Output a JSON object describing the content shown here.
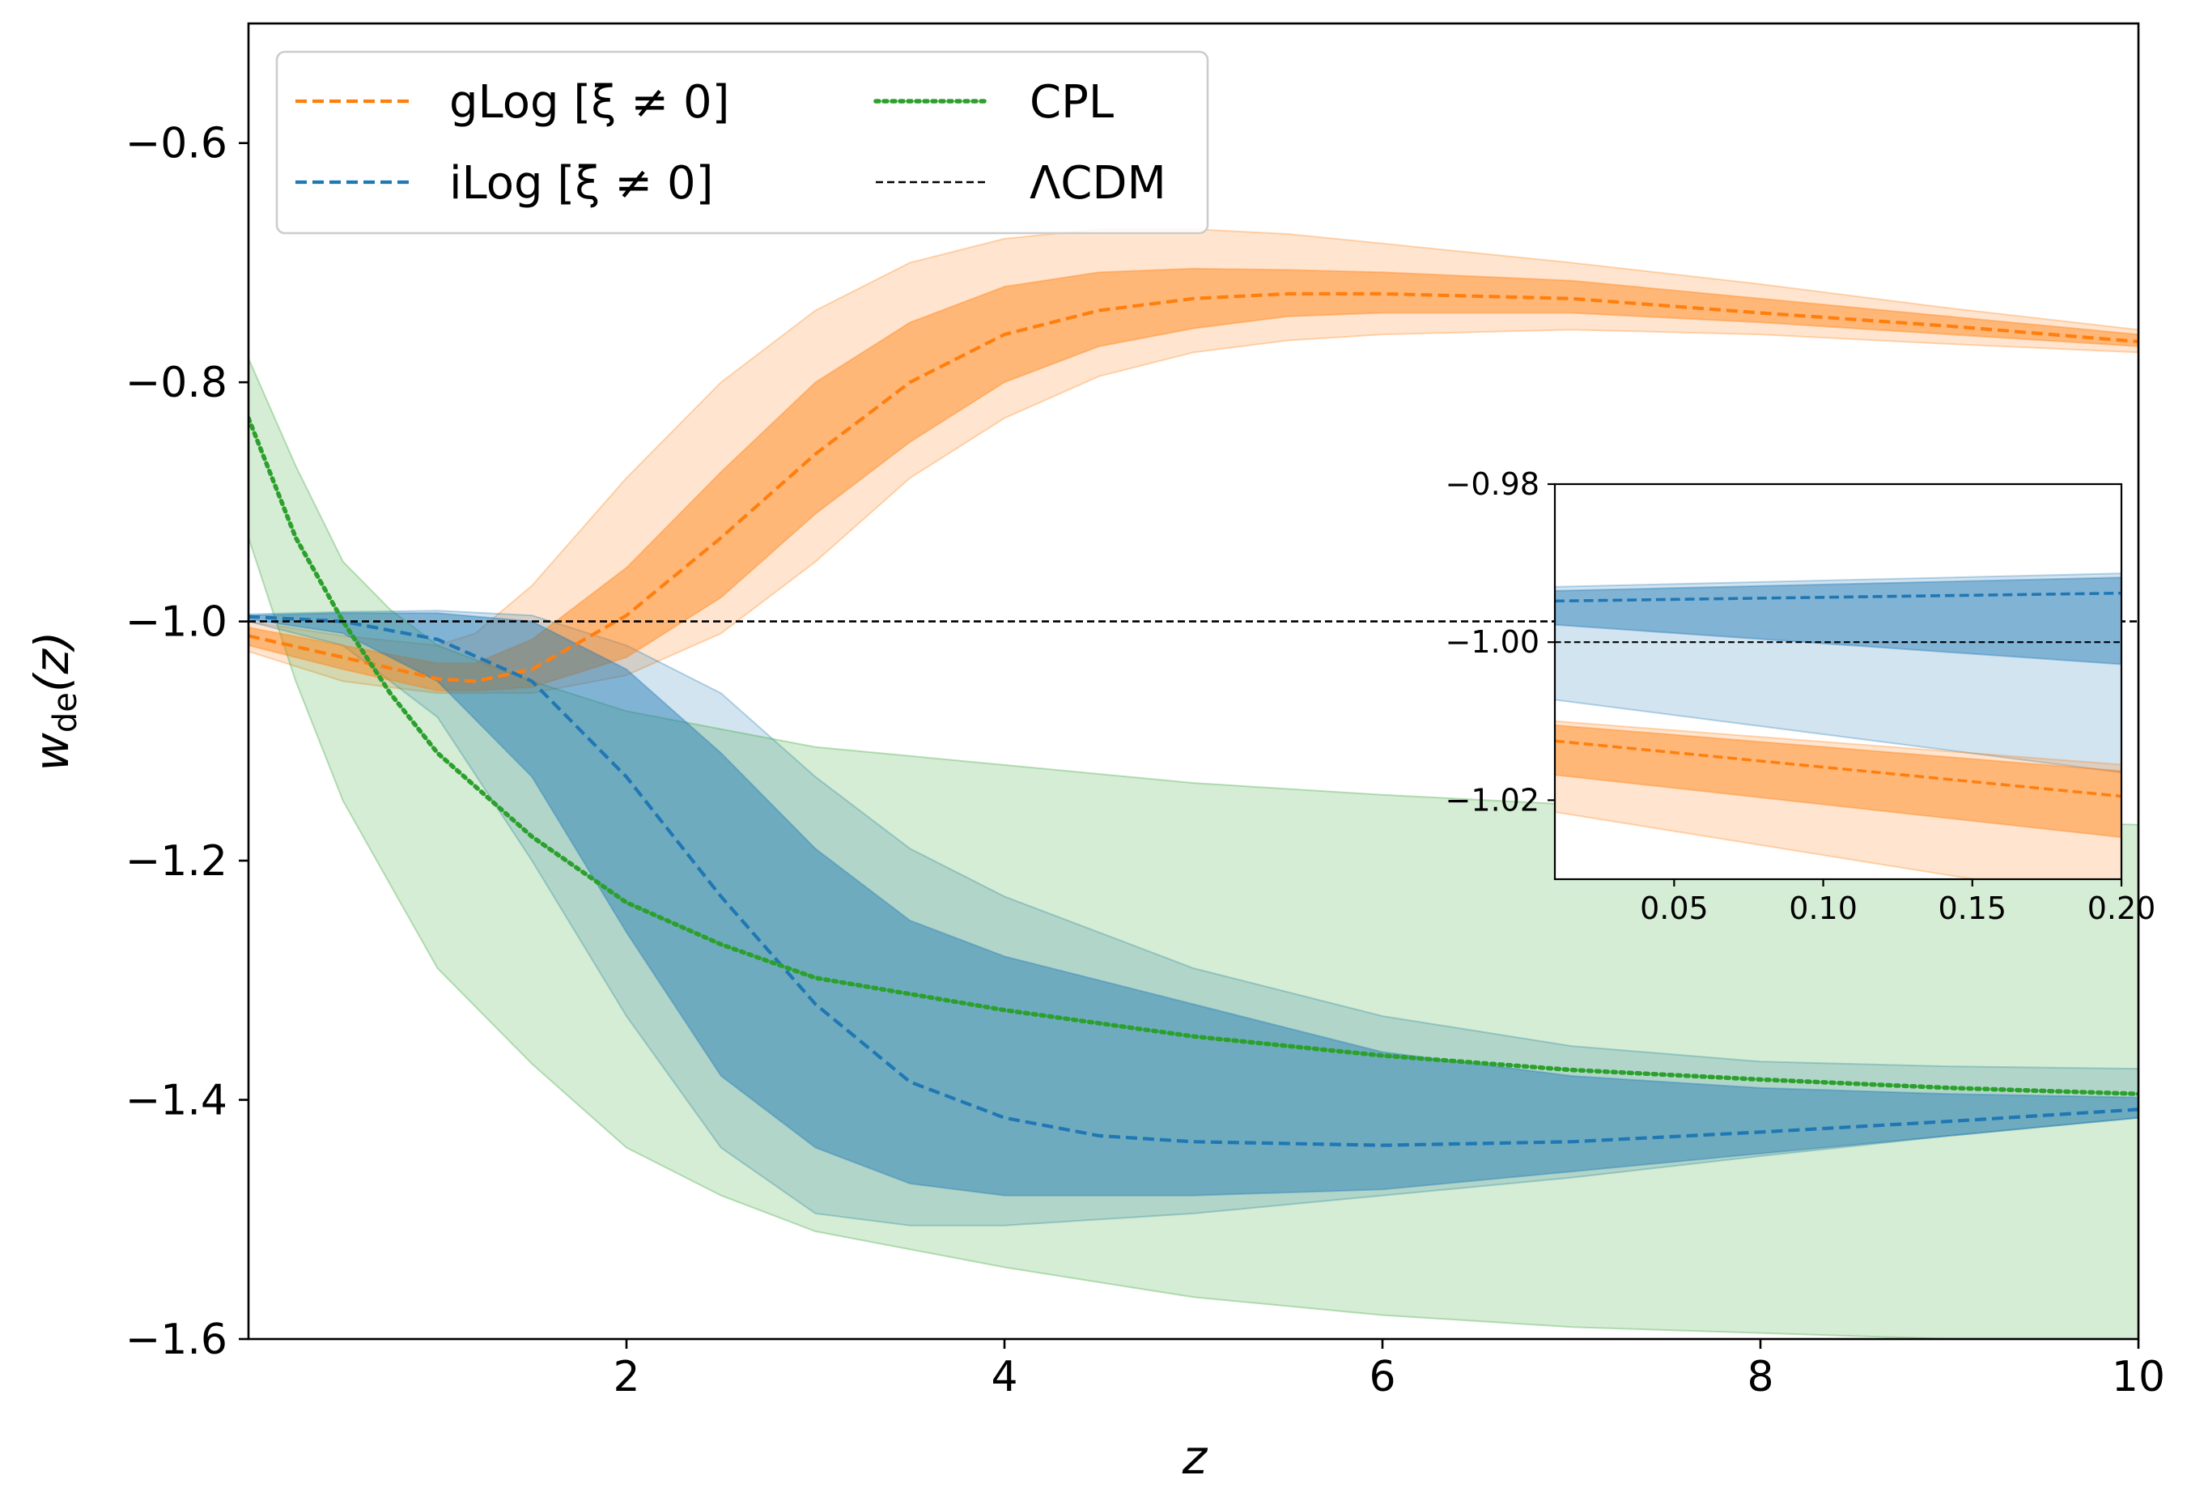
{
  "chart_data": [
    {
      "type": "line",
      "role": "main",
      "xlabel": "z",
      "ylabel_main": "w",
      "ylabel_sub": "de",
      "ylabel_tail": "(z)",
      "xlim": [
        0,
        10
      ],
      "ylim": [
        -1.6,
        -0.5
      ],
      "xticks": [
        2,
        4,
        6,
        8,
        10
      ],
      "xtick_labels": [
        "2",
        "4",
        "6",
        "8",
        "10"
      ],
      "yticks": [
        -0.6,
        -0.8,
        -1.0,
        -1.2,
        -1.4,
        -1.6
      ],
      "ytick_labels": [
        "−0.6",
        "−0.8",
        "−1.0",
        "−1.2",
        "−1.4",
        "−1.6"
      ],
      "grid": false,
      "legend_position": "top-left",
      "legend_columns": 2,
      "colors": {
        "orange": "#ff7f0e",
        "blue": "#1f77b4",
        "green": "#2ca02c",
        "black": "#000000"
      },
      "series": [
        {
          "name": "gLog [ξ ≠ 0]",
          "color": "#ff7f0e",
          "style": "dashed",
          "x": [
            0,
            0.5,
            1,
            1.2,
            1.5,
            2,
            2.5,
            3,
            3.5,
            4,
            4.5,
            5,
            5.5,
            6,
            7,
            8,
            9,
            10
          ],
          "y": [
            -1.012,
            -1.03,
            -1.048,
            -1.05,
            -1.04,
            -0.995,
            -0.93,
            -0.86,
            -0.8,
            -0.76,
            -0.74,
            -0.73,
            -0.726,
            -0.726,
            -0.73,
            -0.742,
            -0.753,
            -0.766
          ],
          "band_1sigma": {
            "upper": [
              -1.005,
              -1.02,
              -1.035,
              -1.035,
              -1.015,
              -0.955,
              -0.875,
              -0.8,
              -0.75,
              -0.72,
              -0.708,
              -0.705,
              -0.706,
              -0.708,
              -0.715,
              -0.73,
              -0.745,
              -0.76
            ],
            "lower": [
              -1.02,
              -1.04,
              -1.058,
              -1.058,
              -1.055,
              -1.03,
              -0.98,
              -0.91,
              -0.85,
              -0.8,
              -0.77,
              -0.755,
              -0.745,
              -0.742,
              -0.742,
              -0.75,
              -0.76,
              -0.77
            ]
          },
          "band_2sigma": {
            "upper": [
              -1.0,
              -1.012,
              -1.02,
              -1.01,
              -0.97,
              -0.88,
              -0.8,
              -0.74,
              -0.7,
              -0.68,
              -0.672,
              -0.672,
              -0.676,
              -0.684,
              -0.7,
              -0.718,
              -0.738,
              -0.756
            ],
            "lower": [
              -1.025,
              -1.05,
              -1.06,
              -1.06,
              -1.06,
              -1.045,
              -1.01,
              -0.95,
              -0.88,
              -0.83,
              -0.795,
              -0.775,
              -0.765,
              -0.76,
              -0.756,
              -0.76,
              -0.768,
              -0.775
            ]
          }
        },
        {
          "name": "iLog [ξ ≠ 0]",
          "color": "#1f77b4",
          "style": "dashed",
          "x": [
            0,
            0.5,
            1,
            1.5,
            2,
            2.5,
            3,
            3.5,
            4,
            4.5,
            5,
            6,
            7,
            8,
            9,
            10
          ],
          "y": [
            -0.996,
            -1.0,
            -1.015,
            -1.05,
            -1.13,
            -1.23,
            -1.32,
            -1.385,
            -1.415,
            -1.43,
            -1.435,
            -1.438,
            -1.435,
            -1.427,
            -1.418,
            -1.408
          ],
          "band_1sigma": {
            "upper": [
              -0.995,
              -0.993,
              -0.993,
              -1.0,
              -1.04,
              -1.11,
              -1.19,
              -1.25,
              -1.28,
              -1.3,
              -1.32,
              -1.36,
              -1.38,
              -1.39,
              -1.395,
              -1.398
            ],
            "lower": [
              -0.998,
              -1.01,
              -1.05,
              -1.13,
              -1.26,
              -1.38,
              -1.44,
              -1.47,
              -1.48,
              -1.48,
              -1.48,
              -1.475,
              -1.46,
              -1.445,
              -1.43,
              -1.415
            ]
          },
          "band_2sigma": {
            "upper": [
              -0.994,
              -0.992,
              -0.991,
              -0.995,
              -1.02,
              -1.06,
              -1.13,
              -1.19,
              -1.23,
              -1.26,
              -1.29,
              -1.33,
              -1.355,
              -1.368,
              -1.372,
              -1.374
            ],
            "lower": [
              -1.0,
              -1.02,
              -1.08,
              -1.2,
              -1.33,
              -1.44,
              -1.495,
              -1.505,
              -1.505,
              -1.5,
              -1.495,
              -1.48,
              -1.465,
              -1.447,
              -1.43,
              -1.415
            ]
          }
        },
        {
          "name": "CPL",
          "color": "#2ca02c",
          "style": "dotted",
          "x": [
            0,
            0.25,
            0.5,
            0.75,
            1,
            1.5,
            2,
            2.5,
            3,
            4,
            5,
            6,
            7,
            8,
            9,
            10
          ],
          "y": [
            -0.83,
            -0.93,
            -1.0,
            -1.06,
            -1.11,
            -1.18,
            -1.235,
            -1.27,
            -1.298,
            -1.325,
            -1.347,
            -1.363,
            -1.375,
            -1.383,
            -1.39,
            -1.395
          ],
          "band_2sigma": {
            "upper": [
              -0.78,
              -0.87,
              -0.95,
              -0.99,
              -1.02,
              -1.05,
              -1.075,
              -1.09,
              -1.105,
              -1.12,
              -1.135,
              -1.145,
              -1.153,
              -1.16,
              -1.165,
              -1.17
            ],
            "lower": [
              -0.93,
              -1.05,
              -1.15,
              -1.22,
              -1.29,
              -1.37,
              -1.44,
              -1.48,
              -1.51,
              -1.54,
              -1.565,
              -1.58,
              -1.59,
              -1.595,
              -1.6,
              -1.6
            ]
          }
        },
        {
          "name": "ΛCDM",
          "color": "#000000",
          "style": "dashed-thin",
          "x": [
            0,
            10
          ],
          "y": [
            -1.0,
            -1.0
          ]
        }
      ]
    },
    {
      "type": "line",
      "role": "inset",
      "xlim": [
        0.01,
        0.2
      ],
      "ylim": [
        -1.03,
        -0.98
      ],
      "xticks": [
        0.05,
        0.1,
        0.15,
        0.2
      ],
      "xtick_labels": [
        "0.05",
        "0.10",
        "0.15",
        "0.20"
      ],
      "yticks": [
        -0.98,
        -1.0,
        -1.02
      ],
      "ytick_labels": [
        "−0.98",
        "−1.00",
        "−1.02"
      ],
      "series": [
        {
          "name": "iLog [ξ ≠ 0]",
          "color": "#1f77b4",
          "x": [
            0.01,
            0.2
          ],
          "y": [
            -0.9948,
            -0.9938
          ],
          "band_1sigma": {
            "upper": [
              -0.9935,
              -0.9918
            ],
            "lower": [
              -0.9978,
              -1.0028
            ]
          },
          "band_2sigma": {
            "upper": [
              -0.993,
              -0.9913
            ],
            "lower": [
              -1.0073,
              -1.0165
            ]
          }
        },
        {
          "name": "gLog [ξ ≠ 0]",
          "color": "#ff7f0e",
          "x": [
            0.01,
            0.2
          ],
          "y": [
            -1.0125,
            -1.0195
          ],
          "band_1sigma": {
            "upper": [
              -1.0105,
              -1.0163
            ],
            "lower": [
              -1.0168,
              -1.0247
            ]
          },
          "band_2sigma": {
            "upper": [
              -1.01,
              -1.0155
            ],
            "lower": [
              -1.0215,
              -1.033
            ]
          }
        },
        {
          "name": "ΛCDM",
          "color": "#000000",
          "x": [
            0.01,
            0.2
          ],
          "y": [
            -1.0,
            -1.0
          ]
        }
      ]
    }
  ],
  "legend": {
    "items": [
      {
        "label": "gLog [ξ ≠ 0]",
        "color": "#ff7f0e",
        "style": "dashed"
      },
      {
        "label": "iLog [ξ ≠ 0]",
        "color": "#1f77b4",
        "style": "dashed"
      },
      {
        "label": "CPL",
        "color": "#2ca02c",
        "style": "dotted"
      },
      {
        "label": "ΛCDM",
        "color": "#000000",
        "style": "dashed-thin"
      }
    ]
  },
  "text": {
    "xlabel": "z",
    "ylabel_w": "w",
    "ylabel_sub": "de",
    "ylabel_tail": "(z)"
  }
}
